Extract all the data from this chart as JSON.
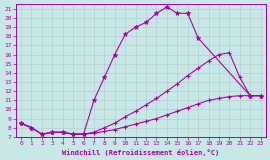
{
  "xlabel": "Windchill (Refroidissement éolien,°C)",
  "bg_color": "#c8e8e8",
  "line_color": "#aa00aa",
  "grid_color": "#b0c8c8",
  "xlim": [
    -0.5,
    23.5
  ],
  "ylim": [
    7,
    21.5
  ],
  "xticks": [
    0,
    1,
    2,
    3,
    4,
    5,
    6,
    7,
    8,
    9,
    10,
    11,
    12,
    13,
    14,
    15,
    16,
    17,
    18,
    19,
    20,
    21,
    22,
    23
  ],
  "yticks": [
    7,
    8,
    9,
    10,
    11,
    12,
    13,
    14,
    15,
    16,
    17,
    18,
    19,
    20,
    21
  ],
  "line1": {
    "x": [
      0,
      1,
      2,
      3,
      4,
      5,
      6,
      7,
      8,
      9,
      10,
      11,
      12,
      13,
      14,
      15,
      16,
      17,
      22,
      23
    ],
    "y": [
      8.5,
      8.0,
      7.3,
      7.5,
      7.5,
      7.3,
      7.3,
      11.0,
      13.5,
      16.0,
      18.2,
      19.0,
      19.5,
      20.5,
      21.2,
      20.5,
      20.5,
      17.8,
      11.5,
      11.5
    ]
  },
  "line2": {
    "x": [
      0,
      1,
      2,
      3,
      4,
      5,
      6,
      7,
      8,
      9,
      10,
      11,
      12,
      13,
      14,
      15,
      16,
      17,
      18,
      19,
      20,
      21,
      22,
      23
    ],
    "y": [
      8.5,
      8.0,
      7.3,
      7.5,
      7.5,
      7.3,
      7.3,
      7.5,
      8.0,
      8.5,
      9.2,
      9.8,
      10.5,
      11.2,
      12.0,
      12.8,
      13.7,
      14.5,
      15.3,
      16.0,
      16.2,
      13.5,
      11.5,
      11.5
    ]
  },
  "line3": {
    "x": [
      0,
      1,
      2,
      3,
      4,
      5,
      6,
      7,
      8,
      9,
      10,
      11,
      12,
      13,
      14,
      15,
      16,
      17,
      18,
      19,
      20,
      21,
      22,
      23
    ],
    "y": [
      8.5,
      8.0,
      7.3,
      7.5,
      7.5,
      7.3,
      7.3,
      7.4,
      7.6,
      7.8,
      8.1,
      8.4,
      8.7,
      9.0,
      9.4,
      9.8,
      10.2,
      10.6,
      11.0,
      11.2,
      11.4,
      11.5,
      11.5,
      11.5
    ]
  }
}
